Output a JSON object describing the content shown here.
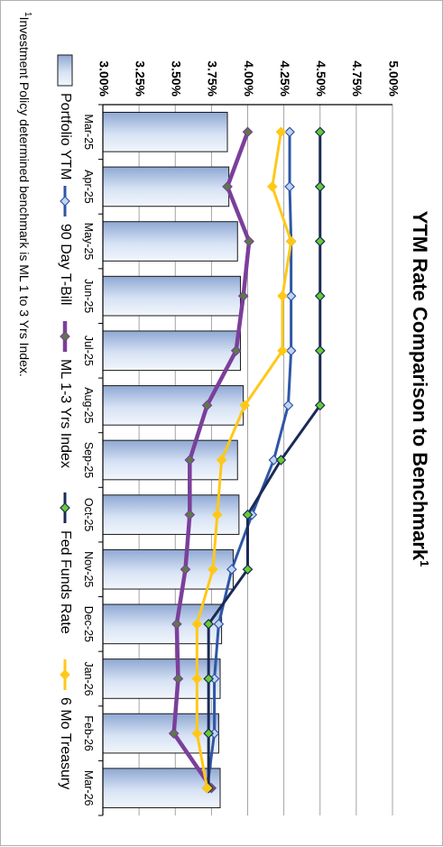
{
  "chart_data": {
    "type": "bar",
    "title": "YTM Rate Comparison to Benchmark",
    "title_superscript": "1",
    "categories": [
      "Mar-25",
      "Apr-25",
      "May-25",
      "Jun-25",
      "Jul-25",
      "Aug-25",
      "Sep-25",
      "Oct-25",
      "Nov-25",
      "Dec-25",
      "Jan-26",
      "Feb-26",
      "Mar-26"
    ],
    "ylim": [
      3.0,
      5.0
    ],
    "yticks": [
      "3.00%",
      "3.25%",
      "3.50%",
      "3.75%",
      "4.00%",
      "4.25%",
      "4.50%",
      "4.75%",
      "5.00%"
    ],
    "grid": true,
    "legend_position": "bottom",
    "series": [
      {
        "name": "Portfolio YTM",
        "kind": "bar",
        "color": "#b3c7e6",
        "values": [
          3.86,
          3.87,
          3.93,
          3.95,
          3.95,
          3.97,
          3.93,
          3.94,
          3.9,
          3.82,
          3.81,
          3.8,
          3.81
        ]
      },
      {
        "name": "90 Day T-Bill",
        "kind": "line",
        "color": "#2e56a6",
        "marker": "diamond",
        "marker_color": "#c2d3f2",
        "values": [
          4.29,
          4.29,
          4.3,
          4.3,
          4.3,
          4.28,
          4.18,
          4.03,
          3.89,
          3.8,
          3.77,
          3.77,
          3.72
        ]
      },
      {
        "name": "ML 1-3 Yrs Index",
        "kind": "line",
        "color": "#7b3f9a",
        "marker": "diamond",
        "marker_color": "#5b7a45",
        "values": [
          4.0,
          3.86,
          4.01,
          3.97,
          3.92,
          3.72,
          3.6,
          3.6,
          3.57,
          3.51,
          3.52,
          3.49,
          3.75
        ]
      },
      {
        "name": "Fed Funds Rate",
        "kind": "line",
        "color": "#1b2a57",
        "marker": "diamond",
        "marker_color": "#66cc33",
        "values": [
          4.5,
          4.5,
          4.5,
          4.5,
          4.5,
          4.5,
          4.23,
          4.0,
          4.0,
          3.73,
          3.73,
          3.73,
          3.73
        ]
      },
      {
        "name": "6 Mo Treasury",
        "kind": "line",
        "color": "#ffc819",
        "marker": "diamond",
        "marker_color": "#ffc819",
        "values": [
          4.23,
          4.17,
          4.3,
          4.24,
          4.24,
          3.98,
          3.82,
          3.79,
          3.76,
          3.65,
          3.65,
          3.65,
          3.72
        ]
      }
    ]
  },
  "footnote": "Investment Policy determined benchmark is ML 1 to 3 Yrs Index.",
  "footnote_superscript": "1"
}
